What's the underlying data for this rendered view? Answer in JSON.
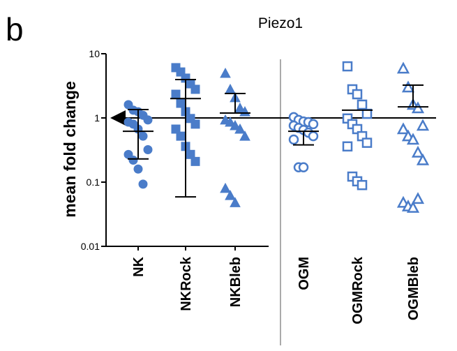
{
  "panel_label": "b",
  "chart_data": {
    "type": "dot",
    "title": "Piezo1",
    "y_label": "mean fold change",
    "log_scale": true,
    "ylim": [
      0.01,
      10
    ],
    "yticks": [
      0.01,
      0.1,
      1,
      10
    ],
    "reference_line": 1,
    "color": "#4a7cc9",
    "series": [
      {
        "name": "NK",
        "marker": "circle",
        "filled": true,
        "mean": 0.62,
        "lower": 0.23,
        "upper": 1.35,
        "values": [
          1.61,
          1.32,
          1.25,
          1.1,
          0.93,
          0.86,
          0.8,
          0.67,
          0.52,
          0.32,
          0.27,
          0.22,
          0.16,
          0.093
        ]
      },
      {
        "name": "NKRock",
        "marker": "square",
        "filled": true,
        "mean": 2.0,
        "lower": 0.059,
        "upper": 3.96,
        "values": [
          6.07,
          5.2,
          4.17,
          3.4,
          2.79,
          2.34,
          1.69,
          1.25,
          0.98,
          0.8,
          0.67,
          0.52,
          0.36,
          0.27,
          0.21
        ]
      },
      {
        "name": "NKBleb",
        "marker": "triangle",
        "filled": true,
        "mean": 1.19,
        "lower": null,
        "upper": 2.4,
        "values": [
          4.96,
          2.79,
          2.07,
          1.42,
          1.25,
          0.93,
          0.86,
          0.76,
          0.67,
          0.52,
          0.08,
          0.062,
          0.048
        ]
      },
      {
        "name": "OGM",
        "marker": "circle",
        "filled": false,
        "mean": 0.62,
        "lower": 0.38,
        "upper": null,
        "values": [
          1.03,
          0.93,
          0.88,
          0.86,
          0.8,
          0.76,
          0.7,
          0.65,
          0.59,
          0.52,
          0.46,
          0.17,
          0.17
        ]
      },
      {
        "name": "OGMRock",
        "marker": "square",
        "filled": false,
        "mean": 1.32,
        "lower": null,
        "upper": null,
        "values": [
          6.36,
          2.79,
          2.34,
          1.61,
          1.16,
          0.98,
          0.8,
          0.67,
          0.52,
          0.41,
          0.36,
          0.122,
          0.103,
          0.09
        ]
      },
      {
        "name": "OGMBleb",
        "marker": "triangle",
        "filled": false,
        "mean": 1.49,
        "lower": null,
        "upper": 3.24,
        "values": [
          5.9,
          3.0,
          1.61,
          1.42,
          0.76,
          0.67,
          0.52,
          0.46,
          0.29,
          0.22,
          0.048,
          0.042,
          0.04,
          0.055
        ]
      }
    ]
  }
}
